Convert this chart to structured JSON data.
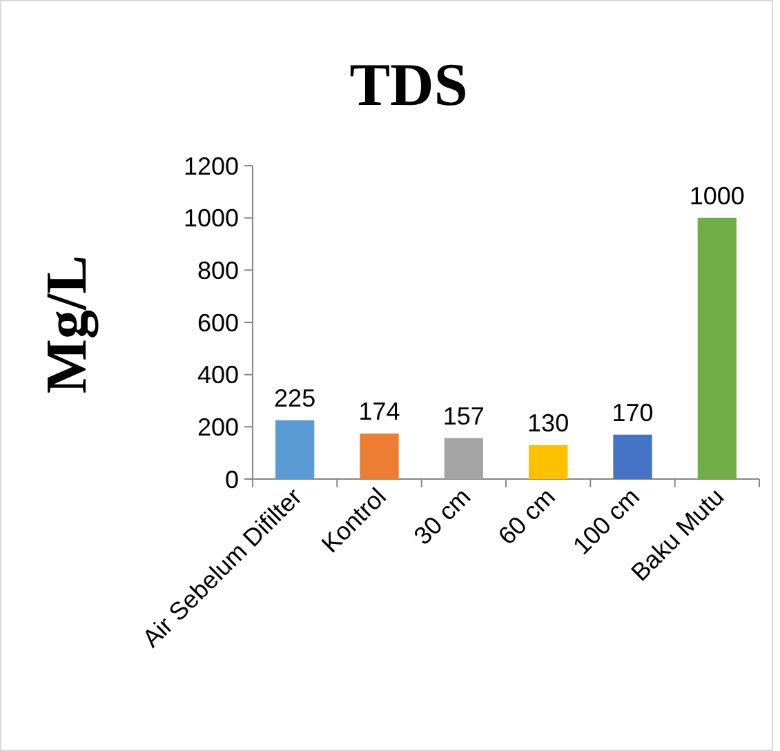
{
  "chart_data": {
    "type": "bar",
    "title": "TDS",
    "ylabel": "Mg/L",
    "categories": [
      "Air Sebelum Difilter",
      "Kontrol",
      "30 cm",
      "60 cm",
      "100 cm",
      "Baku Mutu"
    ],
    "values": [
      225,
      174,
      157,
      130,
      170,
      1000
    ],
    "colors": [
      "#5b9bd5",
      "#ed7d31",
      "#a5a5a5",
      "#ffc000",
      "#4472c4",
      "#70ad47"
    ],
    "ylim": [
      0,
      1200
    ],
    "yticks": [
      0,
      200,
      400,
      600,
      800,
      1000,
      1200
    ],
    "data_labels": true
  }
}
